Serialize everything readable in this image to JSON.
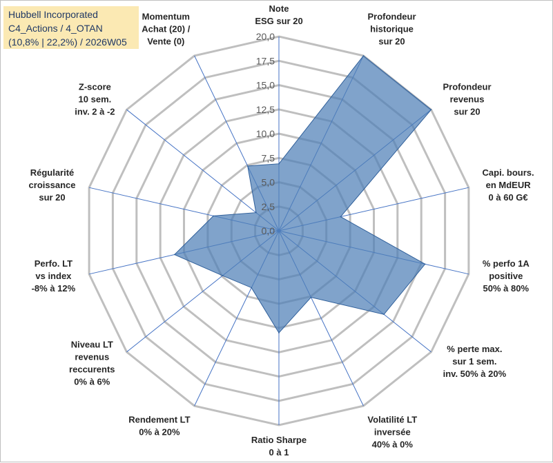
{
  "title": {
    "line1": "Hubbell Incorporated",
    "line2": "C4_Actions / 4_OTAN",
    "line3": "(10,8% | 22,2%) / 2026W05"
  },
  "chart_data": {
    "type": "radar",
    "range": [
      0,
      20
    ],
    "tick_values": [
      0,
      2.5,
      5,
      7.5,
      10,
      12.5,
      15,
      17.5,
      20
    ],
    "tick_labels": [
      "0,0",
      "2,5",
      "5,0",
      "7,5",
      "10,0",
      "12,5",
      "15,0",
      "17,5",
      "20,0"
    ],
    "axes": [
      {
        "lines": [
          "Note",
          "ESG sur 20"
        ],
        "value": 6.9
      },
      {
        "lines": [
          "Profondeur",
          "historique",
          "sur 20"
        ],
        "value": 20
      },
      {
        "lines": [
          "Profondeur",
          "revenus",
          "sur 20"
        ],
        "value": 20
      },
      {
        "lines": [
          "Capi. bours.",
          "en MdEUR",
          "0 à 60 G€"
        ],
        "value": 6.5
      },
      {
        "lines": [
          "% perfo 1A",
          "positive",
          "50% à 80%"
        ],
        "value": 15.4
      },
      {
        "lines": [
          "% perte max.",
          "sur 1 sem.",
          "inv. 50% à 20%"
        ],
        "value": 13.8
      },
      {
        "lines": [
          "Volatilité LT",
          "inversée",
          "40% à 0%"
        ],
        "value": 7.6
      },
      {
        "lines": [
          "Ratio Sharpe",
          "0 à 1"
        ],
        "value": 10.5
      },
      {
        "lines": [
          "Rendement LT",
          "0% à 20%"
        ],
        "value": 6.5
      },
      {
        "lines": [
          "Niveau LT",
          "revenus",
          "reccurents",
          "0% à 6%"
        ],
        "value": 7.4
      },
      {
        "lines": [
          "Perfo. LT",
          "vs index",
          "-8% à 12%"
        ],
        "value": 11.0
      },
      {
        "lines": [
          "Régularité",
          "croissance",
          "sur 20"
        ],
        "value": 6.9
      },
      {
        "lines": [
          "Z-score",
          "10 sem.",
          "inv. 2 à -2"
        ],
        "value": 3.0
      },
      {
        "lines": [
          "Momentum",
          "Achat (20) /",
          "Vente (0)"
        ],
        "value": 7.4
      }
    ],
    "colors": {
      "fill": "#4f7fb7",
      "fill_opacity": 0.72,
      "stroke": "#2f5f9a",
      "grid": "#bfbfbf",
      "spoke": "#4472c4"
    }
  }
}
